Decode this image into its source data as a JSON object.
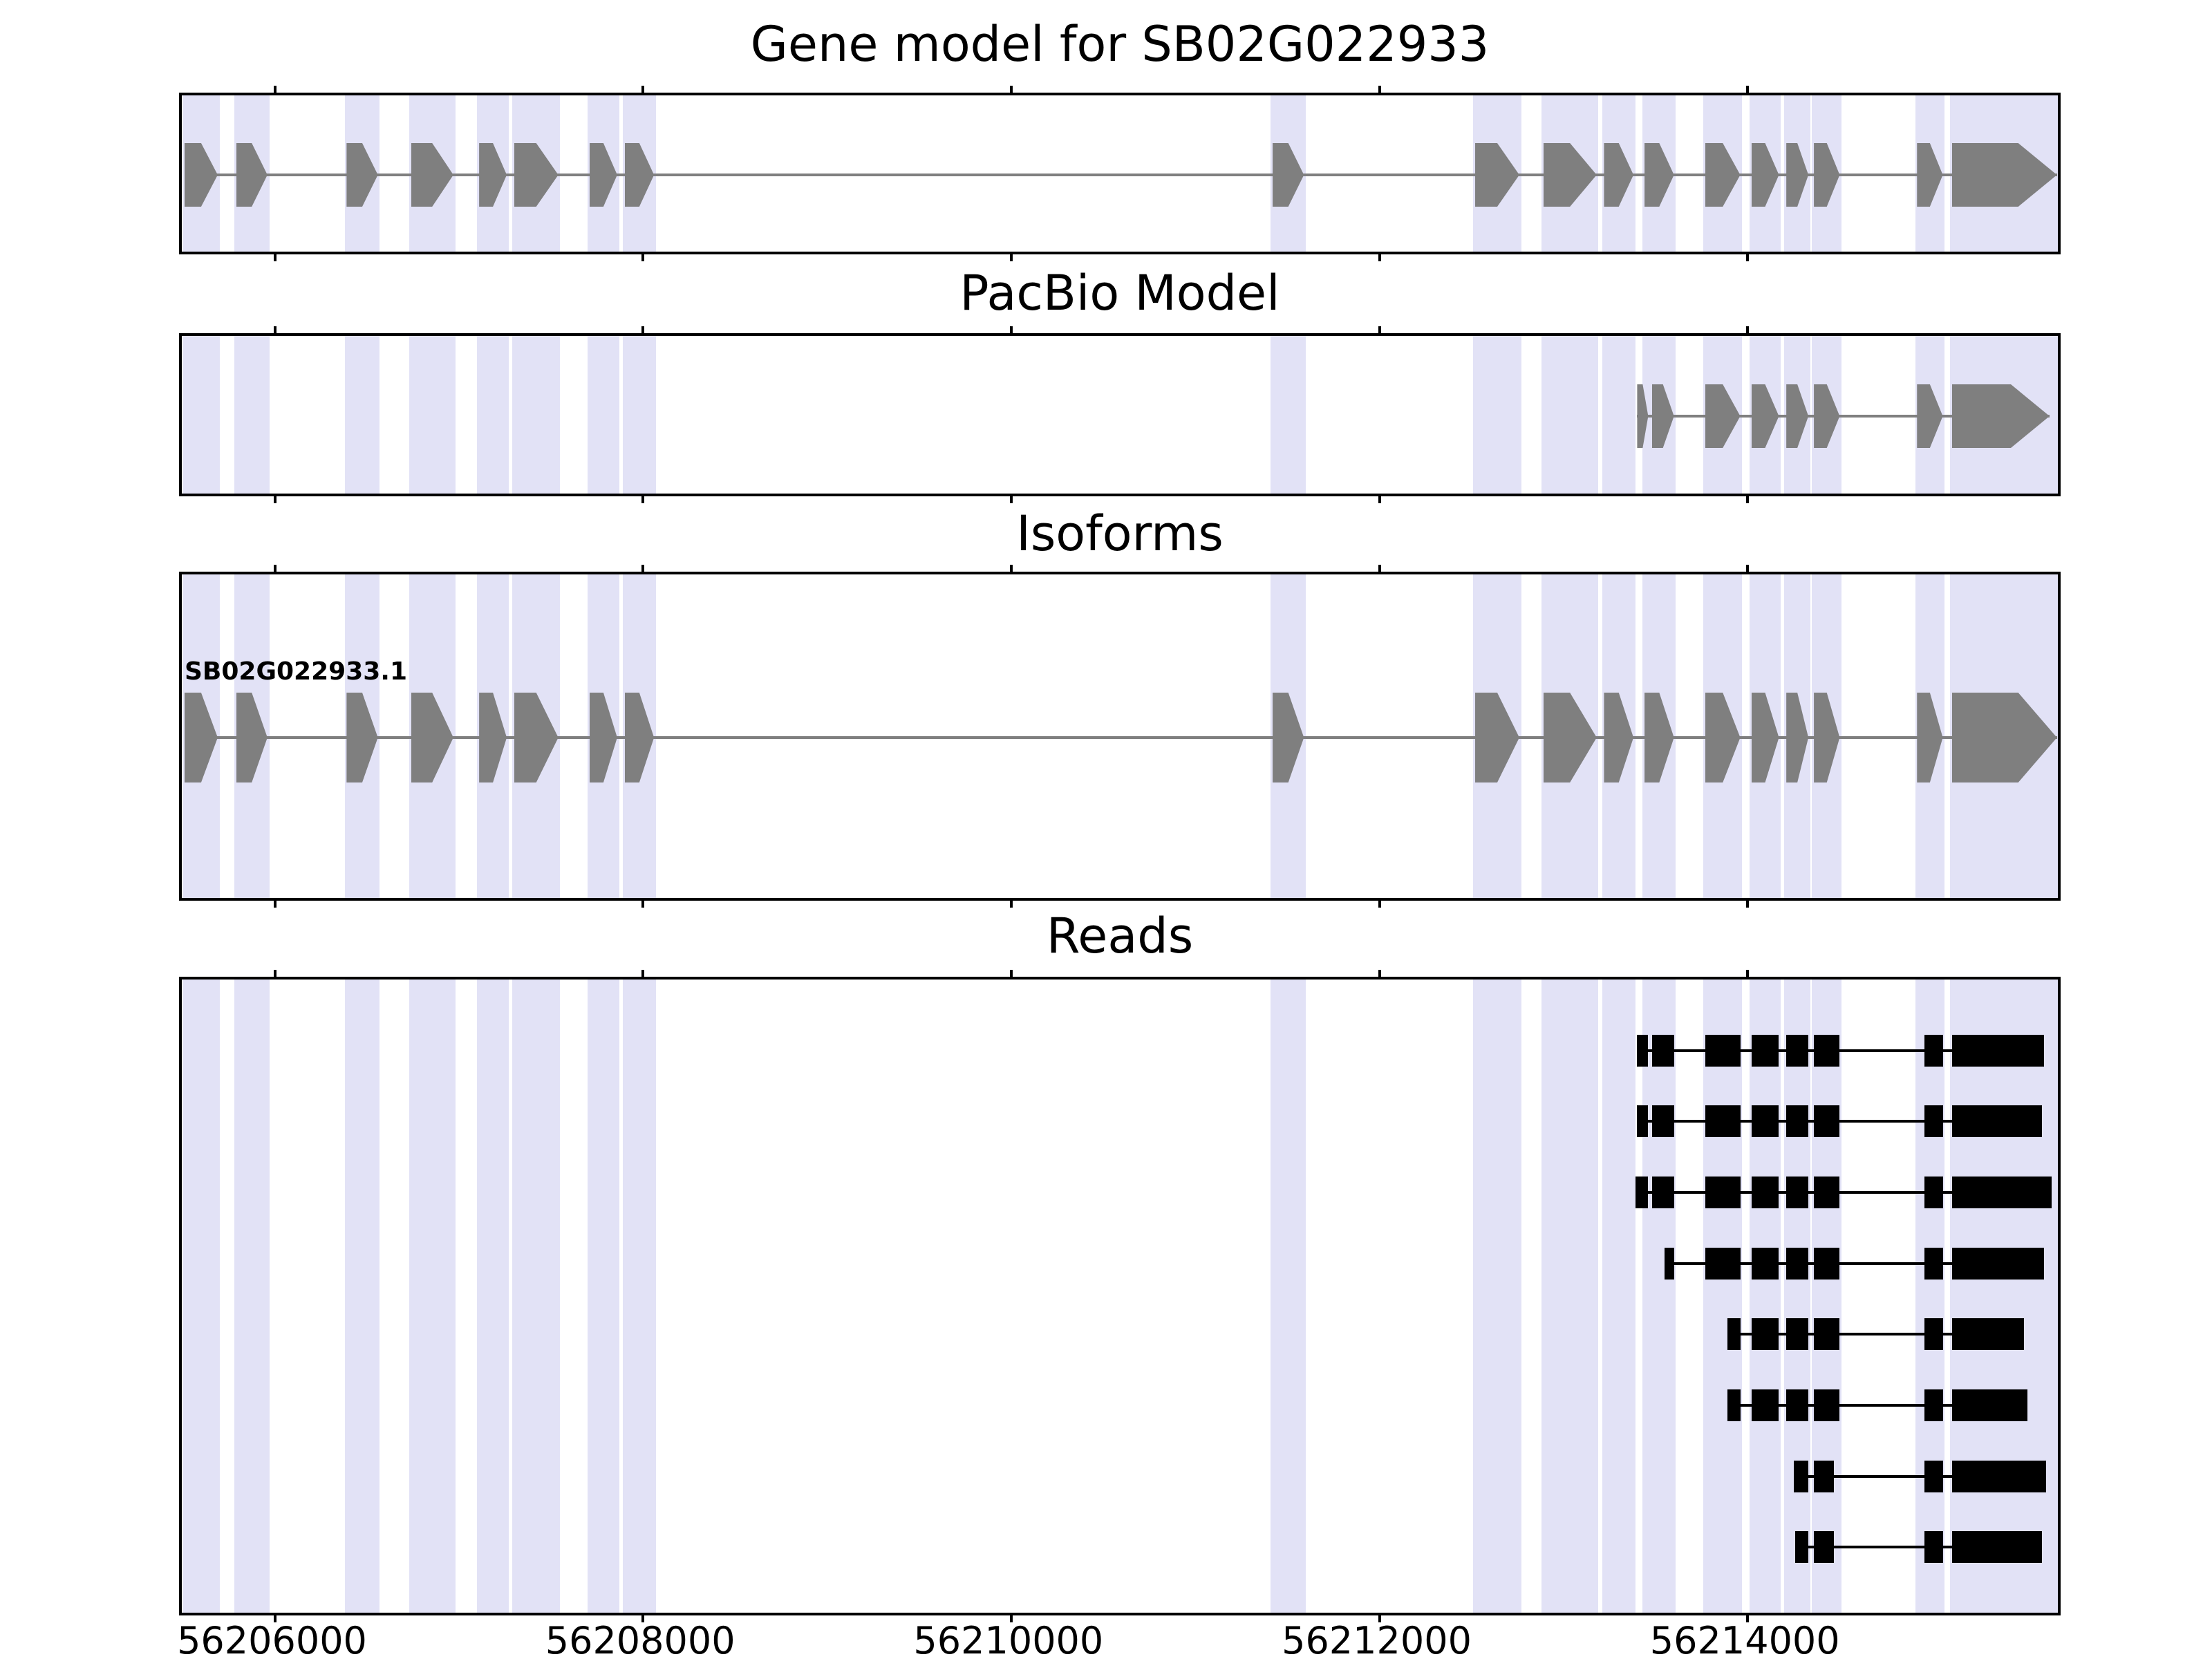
{
  "chart_data": {
    "type": "gene-model-tracks",
    "title": "Gene model for SB02G022933",
    "x_axis": {
      "min": 56205495,
      "max": 56215715,
      "ticks": [
        56206000,
        56208000,
        56210000,
        56212000,
        56214000
      ],
      "tick_labels": [
        "56206000",
        "56208000",
        "56210000",
        "56212000",
        "56214000"
      ]
    },
    "highlight_color": "#e2e2f6",
    "highlight_regions": [
      [
        56205500,
        56205700
      ],
      [
        56205780,
        56205970
      ],
      [
        56206380,
        56206570
      ],
      [
        56206730,
        56206980
      ],
      [
        56207100,
        56207270
      ],
      [
        56207290,
        56207550
      ],
      [
        56207700,
        56207870
      ],
      [
        56207890,
        56208070
      ],
      [
        56211410,
        56211600
      ],
      [
        56212510,
        56212770
      ],
      [
        56212880,
        56213190
      ],
      [
        56213210,
        56213390
      ],
      [
        56213430,
        56213610
      ],
      [
        56213760,
        56213970
      ],
      [
        56214010,
        56214180
      ],
      [
        56214200,
        56214340
      ],
      [
        56214350,
        56214510
      ],
      [
        56214910,
        56215070
      ],
      [
        56215100,
        56215715
      ]
    ],
    "panels": [
      {
        "id": "gene-model",
        "title": "Gene model for SB02G022933",
        "style": "transcript",
        "color": "#7f7f7f",
        "transcripts": [
          {
            "label": "",
            "strand": "+",
            "start": 56205510,
            "end": 56215680,
            "exons": [
              [
                56205510,
                56205690
              ],
              [
                56205790,
                56205960
              ],
              [
                56206390,
                56206560
              ],
              [
                56206740,
                56206970
              ],
              [
                56207110,
                56207260
              ],
              [
                56207300,
                56207540
              ],
              [
                56207710,
                56207860
              ],
              [
                56207900,
                56208060
              ],
              [
                56211420,
                56211590
              ],
              [
                56212520,
                56212760
              ],
              [
                56212890,
                56213180
              ],
              [
                56213220,
                56213380
              ],
              [
                56213440,
                56213600
              ],
              [
                56213770,
                56213960
              ],
              [
                56214020,
                56214170
              ],
              [
                56214210,
                56214330
              ],
              [
                56214360,
                56214500
              ],
              [
                56214920,
                56215060
              ],
              [
                56215110,
                56215680
              ]
            ]
          }
        ]
      },
      {
        "id": "pacbio-model",
        "title": "PacBio Model",
        "style": "transcript",
        "color": "#7f7f7f",
        "transcripts": [
          {
            "label": "",
            "strand": "+",
            "start": 56213400,
            "end": 56215640,
            "exons": [
              [
                56213400,
                56213460
              ],
              [
                56213480,
                56213600
              ],
              [
                56213770,
                56213960
              ],
              [
                56214020,
                56214170
              ],
              [
                56214210,
                56214330
              ],
              [
                56214360,
                56214500
              ],
              [
                56214920,
                56215060
              ],
              [
                56215110,
                56215640
              ]
            ]
          }
        ]
      },
      {
        "id": "isoforms",
        "title": "Isoforms",
        "style": "transcript",
        "color": "#7f7f7f",
        "transcripts": [
          {
            "label": "SB02G022933.1",
            "strand": "+",
            "start": 56205510,
            "end": 56215680,
            "exons": [
              [
                56205510,
                56205690
              ],
              [
                56205790,
                56205960
              ],
              [
                56206390,
                56206560
              ],
              [
                56206740,
                56206970
              ],
              [
                56207110,
                56207260
              ],
              [
                56207300,
                56207540
              ],
              [
                56207710,
                56207860
              ],
              [
                56207900,
                56208060
              ],
              [
                56211420,
                56211590
              ],
              [
                56212520,
                56212760
              ],
              [
                56212890,
                56213180
              ],
              [
                56213220,
                56213380
              ],
              [
                56213440,
                56213600
              ],
              [
                56213770,
                56213960
              ],
              [
                56214020,
                56214170
              ],
              [
                56214210,
                56214330
              ],
              [
                56214360,
                56214500
              ],
              [
                56214920,
                56215060
              ],
              [
                56215110,
                56215680
              ]
            ]
          }
        ]
      },
      {
        "id": "reads",
        "title": "Reads",
        "style": "reads",
        "color": "#000000",
        "reads": [
          {
            "start": 56213400,
            "end": 56215610,
            "blocks": [
              [
                56213400,
                56213460
              ],
              [
                56213480,
                56213600
              ],
              [
                56213770,
                56213960
              ],
              [
                56214020,
                56214170
              ],
              [
                56214210,
                56214330
              ],
              [
                56214360,
                56214500
              ],
              [
                56214960,
                56215060
              ],
              [
                56215110,
                56215610
              ]
            ]
          },
          {
            "start": 56213400,
            "end": 56215600,
            "blocks": [
              [
                56213400,
                56213460
              ],
              [
                56213480,
                56213600
              ],
              [
                56213770,
                56213960
              ],
              [
                56214020,
                56214170
              ],
              [
                56214210,
                56214330
              ],
              [
                56214360,
                56214500
              ],
              [
                56214960,
                56215060
              ],
              [
                56215110,
                56215600
              ]
            ]
          },
          {
            "start": 56213390,
            "end": 56215650,
            "blocks": [
              [
                56213390,
                56213460
              ],
              [
                56213480,
                56213600
              ],
              [
                56213770,
                56213960
              ],
              [
                56214020,
                56214170
              ],
              [
                56214210,
                56214330
              ],
              [
                56214360,
                56214500
              ],
              [
                56214960,
                56215060
              ],
              [
                56215110,
                56215650
              ]
            ]
          },
          {
            "start": 56213550,
            "end": 56215610,
            "blocks": [
              [
                56213550,
                56213600
              ],
              [
                56213770,
                56213960
              ],
              [
                56214020,
                56214170
              ],
              [
                56214210,
                56214330
              ],
              [
                56214360,
                56214500
              ],
              [
                56214960,
                56215060
              ],
              [
                56215110,
                56215610
              ]
            ]
          },
          {
            "start": 56213890,
            "end": 56215500,
            "blocks": [
              [
                56213890,
                56213960
              ],
              [
                56214020,
                56214170
              ],
              [
                56214210,
                56214330
              ],
              [
                56214360,
                56214500
              ],
              [
                56214960,
                56215060
              ],
              [
                56215110,
                56215500
              ]
            ]
          },
          {
            "start": 56213890,
            "end": 56215520,
            "blocks": [
              [
                56213890,
                56213960
              ],
              [
                56214020,
                56214170
              ],
              [
                56214210,
                56214330
              ],
              [
                56214360,
                56214500
              ],
              [
                56214960,
                56215060
              ],
              [
                56215110,
                56215520
              ]
            ]
          },
          {
            "start": 56214250,
            "end": 56215620,
            "blocks": [
              [
                56214250,
                56214330
              ],
              [
                56214360,
                56214470
              ],
              [
                56214960,
                56215060
              ],
              [
                56215110,
                56215620
              ]
            ]
          },
          {
            "start": 56214260,
            "end": 56215600,
            "blocks": [
              [
                56214260,
                56214330
              ],
              [
                56214360,
                56214470
              ],
              [
                56214960,
                56215060
              ],
              [
                56215110,
                56215600
              ]
            ]
          }
        ]
      }
    ]
  }
}
